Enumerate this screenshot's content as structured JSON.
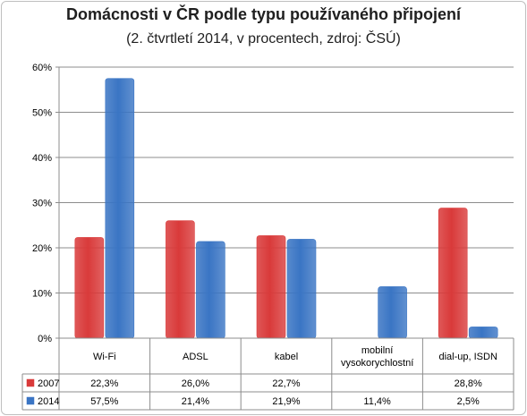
{
  "chart_data": {
    "type": "bar",
    "title": "Domácnosti  v ČR podle typu používaného připojení",
    "subtitle": "(2. čtvrtletí 2014, v procentech, zdroj: ČSÚ)",
    "categories": [
      "Wi-Fi",
      "ADSL",
      "kabel",
      "mobilní vysokorychlostní",
      "dial-up, ISDN"
    ],
    "category_lines": [
      [
        "Wi-Fi"
      ],
      [
        "ADSL"
      ],
      [
        "kabel"
      ],
      [
        "mobilní",
        "vysokorychlostní"
      ],
      [
        "dial-up, ISDN"
      ]
    ],
    "series": [
      {
        "name": "2007",
        "color": "#d93a3a",
        "values": [
          22.3,
          26.0,
          22.7,
          null,
          28.8
        ],
        "labels": [
          "22,3%",
          "26,0%",
          "22,7%",
          "",
          "28,8%"
        ]
      },
      {
        "name": "2014",
        "color": "#3a75c4",
        "values": [
          57.5,
          21.4,
          21.9,
          11.4,
          2.5
        ],
        "labels": [
          "57,5%",
          "21,4%",
          "21,9%",
          "11,4%",
          "2,5%"
        ]
      }
    ],
    "y_ticks": [
      "0%",
      "10%",
      "20%",
      "30%",
      "40%",
      "50%",
      "60%"
    ],
    "ylim": [
      0,
      60
    ],
    "grid": true,
    "legend": "data table"
  }
}
